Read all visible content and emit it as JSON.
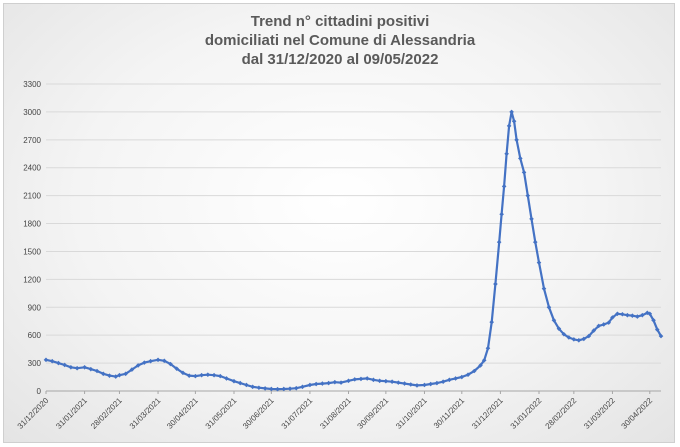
{
  "chart_data": {
    "type": "line",
    "title_lines": [
      "Trend n° cittadini positivi",
      "domiciliati nel Comune di Alessandria",
      "dal 31/12/2020 al 09/05/2022"
    ],
    "xlabel": "",
    "ylabel": "",
    "ylim": [
      0,
      3300
    ],
    "y_ticks": [
      0,
      300,
      600,
      900,
      1200,
      1500,
      1800,
      2100,
      2400,
      2700,
      3000,
      3300
    ],
    "x_ticks": [
      "31/12/2020",
      "31/01/2021",
      "28/02/2021",
      "31/03/2021",
      "30/04/2021",
      "31/05/2021",
      "30/06/2021",
      "31/07/2021",
      "31/08/2021",
      "30/09/2021",
      "31/10/2021",
      "30/11/2021",
      "31/12/2021",
      "31/01/2022",
      "28/02/2022",
      "31/03/2022",
      "30/04/2022"
    ],
    "grid": true,
    "legend": "none",
    "colors": {
      "series": "#4472C4",
      "grid": "#d9d9d9"
    },
    "series": [
      {
        "points": [
          [
            "2020-12-31",
            335
          ],
          [
            "2021-01-05",
            320
          ],
          [
            "2021-01-10",
            300
          ],
          [
            "2021-01-15",
            280
          ],
          [
            "2021-01-20",
            255
          ],
          [
            "2021-01-25",
            245
          ],
          [
            "2021-01-31",
            255
          ],
          [
            "2021-02-05",
            235
          ],
          [
            "2021-02-10",
            215
          ],
          [
            "2021-02-15",
            185
          ],
          [
            "2021-02-20",
            165
          ],
          [
            "2021-02-25",
            155
          ],
          [
            "2021-02-28",
            170
          ],
          [
            "2021-03-05",
            185
          ],
          [
            "2021-03-10",
            230
          ],
          [
            "2021-03-15",
            275
          ],
          [
            "2021-03-20",
            305
          ],
          [
            "2021-03-25",
            320
          ],
          [
            "2021-03-31",
            335
          ],
          [
            "2021-04-05",
            325
          ],
          [
            "2021-04-10",
            290
          ],
          [
            "2021-04-15",
            240
          ],
          [
            "2021-04-20",
            195
          ],
          [
            "2021-04-25",
            165
          ],
          [
            "2021-04-30",
            160
          ],
          [
            "2021-05-05",
            170
          ],
          [
            "2021-05-10",
            175
          ],
          [
            "2021-05-15",
            170
          ],
          [
            "2021-05-20",
            160
          ],
          [
            "2021-05-25",
            135
          ],
          [
            "2021-05-31",
            105
          ],
          [
            "2021-06-05",
            85
          ],
          [
            "2021-06-10",
            65
          ],
          [
            "2021-06-15",
            45
          ],
          [
            "2021-06-20",
            35
          ],
          [
            "2021-06-25",
            28
          ],
          [
            "2021-06-30",
            22
          ],
          [
            "2021-07-05",
            20
          ],
          [
            "2021-07-10",
            22
          ],
          [
            "2021-07-15",
            25
          ],
          [
            "2021-07-20",
            30
          ],
          [
            "2021-07-25",
            45
          ],
          [
            "2021-07-31",
            65
          ],
          [
            "2021-08-05",
            75
          ],
          [
            "2021-08-10",
            80
          ],
          [
            "2021-08-15",
            85
          ],
          [
            "2021-08-20",
            95
          ],
          [
            "2021-08-25",
            90
          ],
          [
            "2021-08-31",
            110
          ],
          [
            "2021-09-05",
            125
          ],
          [
            "2021-09-10",
            130
          ],
          [
            "2021-09-15",
            135
          ],
          [
            "2021-09-20",
            120
          ],
          [
            "2021-09-25",
            110
          ],
          [
            "2021-09-30",
            105
          ],
          [
            "2021-10-05",
            100
          ],
          [
            "2021-10-10",
            90
          ],
          [
            "2021-10-15",
            80
          ],
          [
            "2021-10-20",
            70
          ],
          [
            "2021-10-25",
            60
          ],
          [
            "2021-10-31",
            65
          ],
          [
            "2021-11-05",
            75
          ],
          [
            "2021-11-10",
            85
          ],
          [
            "2021-11-15",
            100
          ],
          [
            "2021-11-20",
            120
          ],
          [
            "2021-11-25",
            135
          ],
          [
            "2021-11-30",
            150
          ],
          [
            "2021-12-05",
            175
          ],
          [
            "2021-12-10",
            215
          ],
          [
            "2021-12-15",
            275
          ],
          [
            "2021-12-18",
            330
          ],
          [
            "2021-12-21",
            460
          ],
          [
            "2021-12-24",
            740
          ],
          [
            "2021-12-27",
            1150
          ],
          [
            "2021-12-30",
            1600
          ],
          [
            "2022-01-01",
            1900
          ],
          [
            "2022-01-03",
            2200
          ],
          [
            "2022-01-05",
            2550
          ],
          [
            "2022-01-07",
            2850
          ],
          [
            "2022-01-09",
            3000
          ],
          [
            "2022-01-11",
            2900
          ],
          [
            "2022-01-13",
            2700
          ],
          [
            "2022-01-16",
            2500
          ],
          [
            "2022-01-19",
            2350
          ],
          [
            "2022-01-22",
            2100
          ],
          [
            "2022-01-25",
            1850
          ],
          [
            "2022-01-28",
            1600
          ],
          [
            "2022-01-31",
            1380
          ],
          [
            "2022-02-04",
            1100
          ],
          [
            "2022-02-08",
            900
          ],
          [
            "2022-02-12",
            760
          ],
          [
            "2022-02-16",
            670
          ],
          [
            "2022-02-20",
            610
          ],
          [
            "2022-02-24",
            575
          ],
          [
            "2022-02-28",
            555
          ],
          [
            "2022-03-04",
            545
          ],
          [
            "2022-03-08",
            560
          ],
          [
            "2022-03-12",
            590
          ],
          [
            "2022-03-16",
            650
          ],
          [
            "2022-03-20",
            700
          ],
          [
            "2022-03-24",
            715
          ],
          [
            "2022-03-28",
            735
          ],
          [
            "2022-03-31",
            790
          ],
          [
            "2022-04-04",
            830
          ],
          [
            "2022-04-08",
            825
          ],
          [
            "2022-04-12",
            815
          ],
          [
            "2022-04-16",
            810
          ],
          [
            "2022-04-20",
            800
          ],
          [
            "2022-04-24",
            815
          ],
          [
            "2022-04-28",
            840
          ],
          [
            "2022-04-30",
            830
          ],
          [
            "2022-05-03",
            760
          ],
          [
            "2022-05-06",
            660
          ],
          [
            "2022-05-09",
            590
          ]
        ]
      }
    ]
  }
}
